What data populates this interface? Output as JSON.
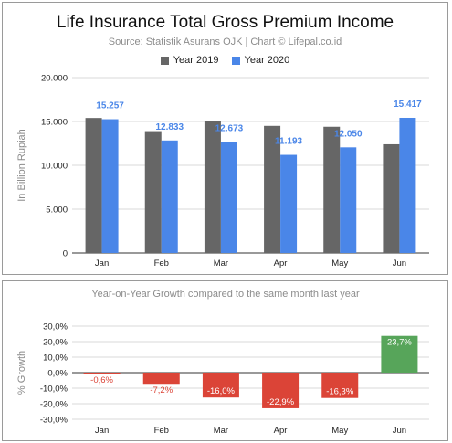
{
  "chart_data": [
    {
      "type": "bar",
      "title": "Life Insurance Total Gross Premium Income",
      "subtitle": "Source: Statistik Asurans OJK | Chart © Lifepal.co.id",
      "ylabel": "In Billion Rupiah",
      "xlabel": "",
      "categories": [
        "Jan",
        "Feb",
        "Mar",
        "Apr",
        "May",
        "Jun"
      ],
      "ylim": [
        0,
        20000
      ],
      "yticks": [
        0,
        5000,
        10000,
        15000,
        20000
      ],
      "ytick_labels": [
        "0",
        "5.000",
        "10.000",
        "15.000",
        "20.000"
      ],
      "grid": true,
      "legend_position": "top-center",
      "series": [
        {
          "name": "Year 2019",
          "color": "#666666",
          "values": [
            15400,
            13900,
            15100,
            14500,
            14400,
            12400
          ],
          "data_labels": [
            "",
            "",
            "",
            "",
            "",
            ""
          ]
        },
        {
          "name": "Year 2020",
          "color": "#4a86e8",
          "values": [
            15257,
            12833,
            12673,
            11193,
            12050,
            15417
          ],
          "data_labels": [
            "15.257",
            "12.833",
            "12.673",
            "11.193",
            "12.050",
            "15.417"
          ]
        }
      ]
    },
    {
      "type": "bar",
      "title": "Year-on-Year Growth compared to the same month last year",
      "ylabel": "% Growth",
      "xlabel": "",
      "categories": [
        "Jan",
        "Feb",
        "Mar",
        "Apr",
        "May",
        "Jun"
      ],
      "ylim": [
        -30,
        30
      ],
      "yticks": [
        -30,
        -20,
        -10,
        0,
        10,
        20,
        30
      ],
      "ytick_labels": [
        "-30,0%",
        "-20,0%",
        "-10,0%",
        "0,0%",
        "10,0%",
        "20,0%",
        "30,0%"
      ],
      "grid": true,
      "negative_color": "#db4437",
      "positive_color": "#57a55a",
      "series": [
        {
          "name": "",
          "values": [
            -0.6,
            -7.2,
            -16.0,
            -22.9,
            -16.3,
            23.7
          ],
          "data_labels": [
            "-0,6%",
            "-7,2%",
            "-16,0%",
            "-22,9%",
            "-16,3%",
            "23,7%"
          ]
        }
      ]
    }
  ]
}
